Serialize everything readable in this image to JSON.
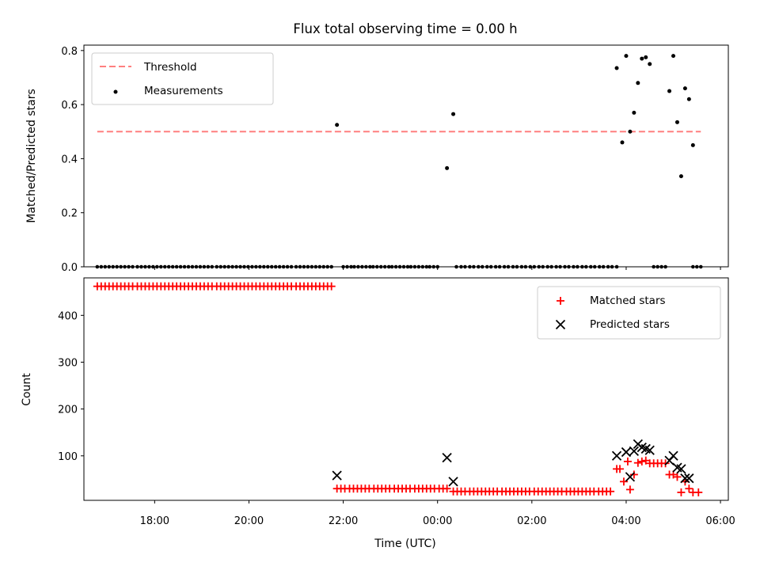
{
  "chart_data": [
    {
      "type": "scatter",
      "title": "Flux total observing time = 0.00 h",
      "xlabel": "",
      "ylabel": "Matched/Predicted stars",
      "x_range": [
        "16:30",
        "06:10"
      ],
      "ylim": [
        0,
        0.82
      ],
      "y_ticks": [
        "0.0",
        "0.2",
        "0.4",
        "0.6",
        "0.8"
      ],
      "y_tick_values": [
        0,
        0.2,
        0.4,
        0.6,
        0.8
      ],
      "grid": false,
      "legend_position": "top-left",
      "colors": {
        "threshold": "#ff7f7f",
        "measurements": "#000000"
      },
      "series": [
        {
          "name": "Threshold",
          "kind": "line",
          "x": [
            "16:47",
            "05:35"
          ],
          "y": [
            0.5,
            0.5
          ]
        },
        {
          "name": "Measurements",
          "kind": "scatter",
          "zero_runs": [
            {
              "start": "16:47",
              "end": "21:45",
              "count": 60
            },
            {
              "start": "22:00",
              "end": "00:00",
              "count": 26
            },
            {
              "start": "00:24",
              "end": "03:48",
              "count": 38
            },
            {
              "start": "04:35",
              "end": "04:50",
              "count": 4
            },
            {
              "start": "05:25",
              "end": "05:35",
              "count": 3
            }
          ],
          "points": [
            {
              "x": "21:52",
              "y": 0.525
            },
            {
              "x": "00:12",
              "y": 0.365
            },
            {
              "x": "00:20",
              "y": 0.565
            },
            {
              "x": "03:48",
              "y": 0.735
            },
            {
              "x": "03:55",
              "y": 0.46
            },
            {
              "x": "04:00",
              "y": 0.78
            },
            {
              "x": "04:05",
              "y": 0.5
            },
            {
              "x": "04:10",
              "y": 0.57
            },
            {
              "x": "04:15",
              "y": 0.68
            },
            {
              "x": "04:20",
              "y": 0.77
            },
            {
              "x": "04:25",
              "y": 0.775
            },
            {
              "x": "04:30",
              "y": 0.75
            },
            {
              "x": "04:55",
              "y": 0.65
            },
            {
              "x": "05:00",
              "y": 0.78
            },
            {
              "x": "05:05",
              "y": 0.535
            },
            {
              "x": "05:10",
              "y": 0.335
            },
            {
              "x": "05:15",
              "y": 0.66
            },
            {
              "x": "05:20",
              "y": 0.62
            },
            {
              "x": "05:25",
              "y": 0.45
            }
          ]
        }
      ]
    },
    {
      "type": "scatter",
      "title": "",
      "xlabel": "Time (UTC)",
      "ylabel": "Count",
      "x_range": [
        "16:30",
        "06:10"
      ],
      "ylim": [
        5,
        480
      ],
      "x_ticks": [
        "18:00",
        "20:00",
        "22:00",
        "00:00",
        "02:00",
        "04:00",
        "06:00"
      ],
      "y_ticks": [
        "100",
        "200",
        "300",
        "400"
      ],
      "y_tick_values": [
        100,
        200,
        300,
        400
      ],
      "grid": false,
      "legend_position": "top-right",
      "colors": {
        "matched": "#ff0000",
        "predicted": "#000000"
      },
      "series": [
        {
          "name": "Matched stars",
          "marker": "plus",
          "runs": [
            {
              "start": "16:47",
              "end": "21:45",
              "count": 60,
              "value": 462
            },
            {
              "start": "21:52",
              "end": "00:12",
              "count": 28,
              "value": 30
            },
            {
              "start": "00:20",
              "end": "03:40",
              "count": 40,
              "value": 24
            }
          ],
          "points": [
            {
              "x": "03:48",
              "y": 72
            },
            {
              "x": "03:52",
              "y": 72
            },
            {
              "x": "03:57",
              "y": 45
            },
            {
              "x": "04:02",
              "y": 88
            },
            {
              "x": "04:05",
              "y": 28
            },
            {
              "x": "04:10",
              "y": 60
            },
            {
              "x": "04:15",
              "y": 85
            },
            {
              "x": "04:20",
              "y": 88
            },
            {
              "x": "04:25",
              "y": 90
            },
            {
              "x": "04:30",
              "y": 84
            },
            {
              "x": "04:35",
              "y": 84
            },
            {
              "x": "04:40",
              "y": 84
            },
            {
              "x": "04:45",
              "y": 84
            },
            {
              "x": "04:50",
              "y": 84
            },
            {
              "x": "04:55",
              "y": 60
            },
            {
              "x": "05:00",
              "y": 60
            },
            {
              "x": "05:05",
              "y": 55
            },
            {
              "x": "05:10",
              "y": 22
            },
            {
              "x": "05:15",
              "y": 45
            },
            {
              "x": "05:20",
              "y": 30
            },
            {
              "x": "05:25",
              "y": 22
            },
            {
              "x": "05:32",
              "y": 22
            }
          ]
        },
        {
          "name": "Predicted stars",
          "marker": "x",
          "points": [
            {
              "x": "21:52",
              "y": 58
            },
            {
              "x": "00:12",
              "y": 96
            },
            {
              "x": "00:20",
              "y": 45
            },
            {
              "x": "03:48",
              "y": 100
            },
            {
              "x": "04:00",
              "y": 108
            },
            {
              "x": "04:05",
              "y": 55
            },
            {
              "x": "04:10",
              "y": 110
            },
            {
              "x": "04:15",
              "y": 125
            },
            {
              "x": "04:20",
              "y": 118
            },
            {
              "x": "04:25",
              "y": 115
            },
            {
              "x": "04:30",
              "y": 112
            },
            {
              "x": "04:55",
              "y": 90
            },
            {
              "x": "05:00",
              "y": 100
            },
            {
              "x": "05:05",
              "y": 75
            },
            {
              "x": "05:10",
              "y": 72
            },
            {
              "x": "05:15",
              "y": 52
            },
            {
              "x": "05:20",
              "y": 52
            }
          ]
        }
      ]
    }
  ]
}
